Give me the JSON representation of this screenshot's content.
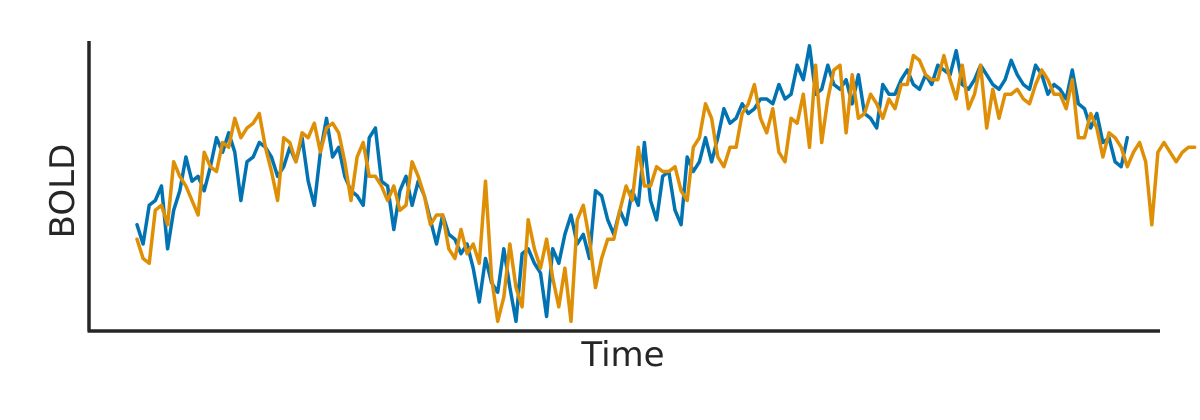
{
  "chart_data": {
    "type": "line",
    "title": "",
    "xlabel": "Time",
    "ylabel": "BOLD",
    "xlim": [
      0,
      159
    ],
    "ylim": [
      -1.45,
      1.55
    ],
    "xticks": [],
    "yticks": [],
    "grid": false,
    "legend": "none",
    "series": [
      {
        "color": "#0173b2",
        "values": [
          -0.35,
          -0.55,
          -0.15,
          -0.1,
          0.05,
          -0.6,
          -0.2,
          0.0,
          0.35,
          0.1,
          0.15,
          0.0,
          0.25,
          0.55,
          0.4,
          0.6,
          0.4,
          -0.1,
          0.3,
          0.35,
          0.5,
          0.45,
          0.35,
          0.15,
          0.25,
          0.45,
          0.3,
          0.55,
          0.1,
          -0.15,
          0.4,
          0.75,
          0.35,
          0.45,
          0.15,
          0.0,
          -0.05,
          -0.15,
          0.55,
          0.65,
          0.1,
          0.05,
          -0.4,
          0.0,
          0.15,
          -0.15,
          0.1,
          -0.05,
          -0.3,
          -0.55,
          -0.25,
          -0.45,
          -0.5,
          -0.65,
          -0.55,
          -0.8,
          -1.15,
          -0.7,
          -0.95,
          -1.05,
          -0.6,
          -1.0,
          -1.35,
          -0.65,
          -0.6,
          -0.75,
          -0.85,
          -1.3,
          -0.6,
          -0.75,
          -0.45,
          -0.25,
          -0.55,
          -0.45,
          -0.7,
          0.0,
          -0.05,
          -0.3,
          -0.45,
          -0.2,
          -0.35,
          0.0,
          -0.15,
          0.5,
          -0.1,
          -0.3,
          0.15,
          0.2,
          -0.2,
          -0.35,
          0.35,
          0.2,
          0.3,
          0.55,
          0.3,
          0.55,
          0.85,
          0.7,
          0.75,
          0.9,
          0.8,
          0.85,
          0.95,
          0.95,
          0.9,
          1.1,
          0.95,
          1.0,
          1.3,
          1.15,
          1.5,
          1.0,
          1.05,
          1.3,
          1.1,
          1.05,
          1.15,
          0.9,
          1.2,
          0.8,
          0.75,
          0.65,
          1.1,
          1.0,
          1.0,
          1.15,
          1.25,
          1.1,
          1.05,
          1.2,
          1.1,
          1.3,
          1.25,
          1.2,
          1.45,
          1.1,
          1.05,
          1.15,
          1.3,
          1.2,
          1.1,
          1.05,
          1.15,
          1.35,
          1.2,
          1.1,
          1.05,
          1.3,
          1.2,
          1.0,
          1.1,
          1.05,
          0.95,
          1.25,
          0.9,
          0.85,
          0.65,
          0.8,
          0.5,
          0.55,
          0.3,
          0.25,
          0.55
        ]
      },
      {
        "color": "#de8f05",
        "values": [
          -0.5,
          -0.7,
          -0.75,
          -0.2,
          -0.15,
          -0.35,
          0.3,
          0.15,
          0.05,
          -0.1,
          -0.25,
          0.4,
          0.25,
          0.2,
          0.5,
          0.45,
          0.75,
          0.55,
          0.65,
          0.7,
          0.8,
          0.45,
          0.2,
          -0.1,
          0.55,
          0.5,
          0.3,
          0.6,
          0.55,
          0.7,
          0.4,
          0.65,
          0.7,
          0.6,
          0.3,
          -0.1,
          0.35,
          0.5,
          0.15,
          0.15,
          0.05,
          -0.1,
          0.05,
          -0.2,
          -0.15,
          0.3,
          0.15,
          -0.05,
          -0.35,
          -0.25,
          -0.25,
          -0.6,
          -0.7,
          -0.4,
          -0.65,
          -0.55,
          -0.75,
          0.1,
          -0.9,
          -1.35,
          -1.1,
          -0.55,
          -1.0,
          -1.2,
          -0.3,
          -0.6,
          -0.8,
          -0.5,
          -0.9,
          -1.2,
          -0.8,
          -1.35,
          -0.3,
          -0.15,
          -0.5,
          -1.0,
          -0.7,
          -0.5,
          -0.5,
          -0.2,
          0.05,
          -0.1,
          0.45,
          0.05,
          0.05,
          0.25,
          0.2,
          0.2,
          0.25,
          0.0,
          -0.1,
          0.45,
          0.55,
          0.9,
          0.75,
          0.35,
          0.25,
          0.45,
          0.45,
          0.8,
          0.9,
          1.1,
          0.75,
          0.6,
          0.85,
          0.4,
          0.3,
          0.75,
          0.7,
          1.0,
          0.45,
          1.3,
          0.5,
          0.95,
          1.25,
          1.3,
          0.6,
          1.2,
          0.75,
          0.8,
          1.0,
          0.9,
          0.75,
          0.95,
          0.85,
          1.1,
          1.1,
          1.4,
          1.35,
          1.2,
          1.15,
          1.15,
          1.4,
          1.15,
          0.95,
          1.3,
          0.85,
          1.0,
          1.3,
          0.65,
          1.05,
          0.75,
          1.0,
          1.0,
          1.05,
          0.95,
          0.9,
          1.1,
          1.25,
          1.15,
          1.0,
          1.0,
          0.85,
          1.15,
          0.55,
          0.55,
          0.8,
          0.65,
          0.35,
          0.6,
          0.55,
          0.45,
          0.25,
          0.4,
          0.5,
          0.3,
          -0.35,
          0.4,
          0.5,
          0.4,
          0.3,
          0.4,
          0.45,
          0.45
        ]
      }
    ]
  }
}
